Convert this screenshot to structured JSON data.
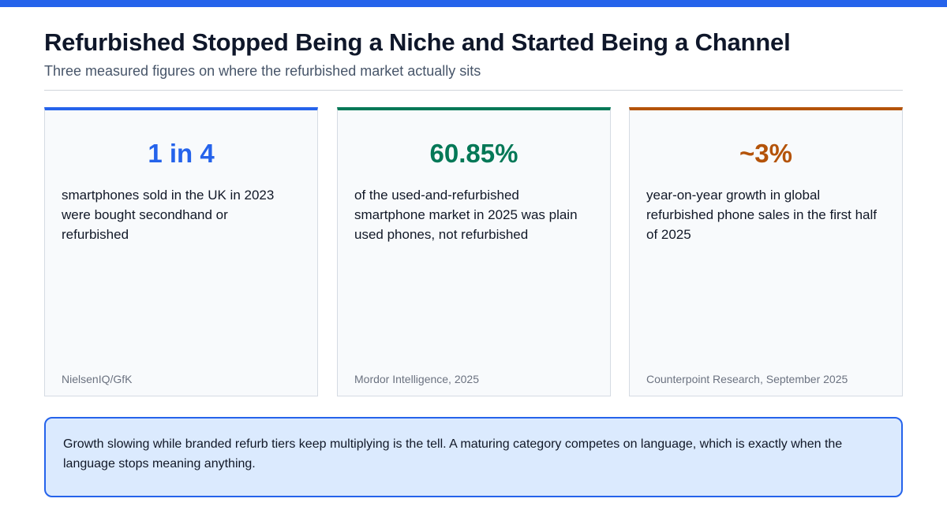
{
  "theme": {
    "accent": "#2563eb",
    "card_1_color": "#2563eb",
    "card_2_color": "#047857",
    "card_3_color": "#b45309",
    "callout_bg": "#dbeafe"
  },
  "header": {
    "title": "Refurbished Stopped Being a Niche and Started Being a Channel",
    "subtitle": "Three measured figures on where the refurbished market actually sits"
  },
  "cards": [
    {
      "stat": "1 in 4",
      "description": "smartphones sold in the UK in 2023 were bought secondhand or refurbished",
      "source": "NielsenIQ/GfK"
    },
    {
      "stat": "60.85%",
      "description": "of the used-and-refurbished smartphone market in 2025 was plain used phones, not refurbished",
      "source": "Mordor Intelligence, 2025"
    },
    {
      "stat": "~3%",
      "description": "year-on-year growth in global refurbished phone sales in the first half of 2025",
      "source": "Counterpoint Research, September 2025"
    }
  ],
  "callout": {
    "text": "Growth slowing while branded refurb tiers keep multiplying is the tell. A maturing category competes on language, which is exactly when the language stops meaning anything."
  }
}
